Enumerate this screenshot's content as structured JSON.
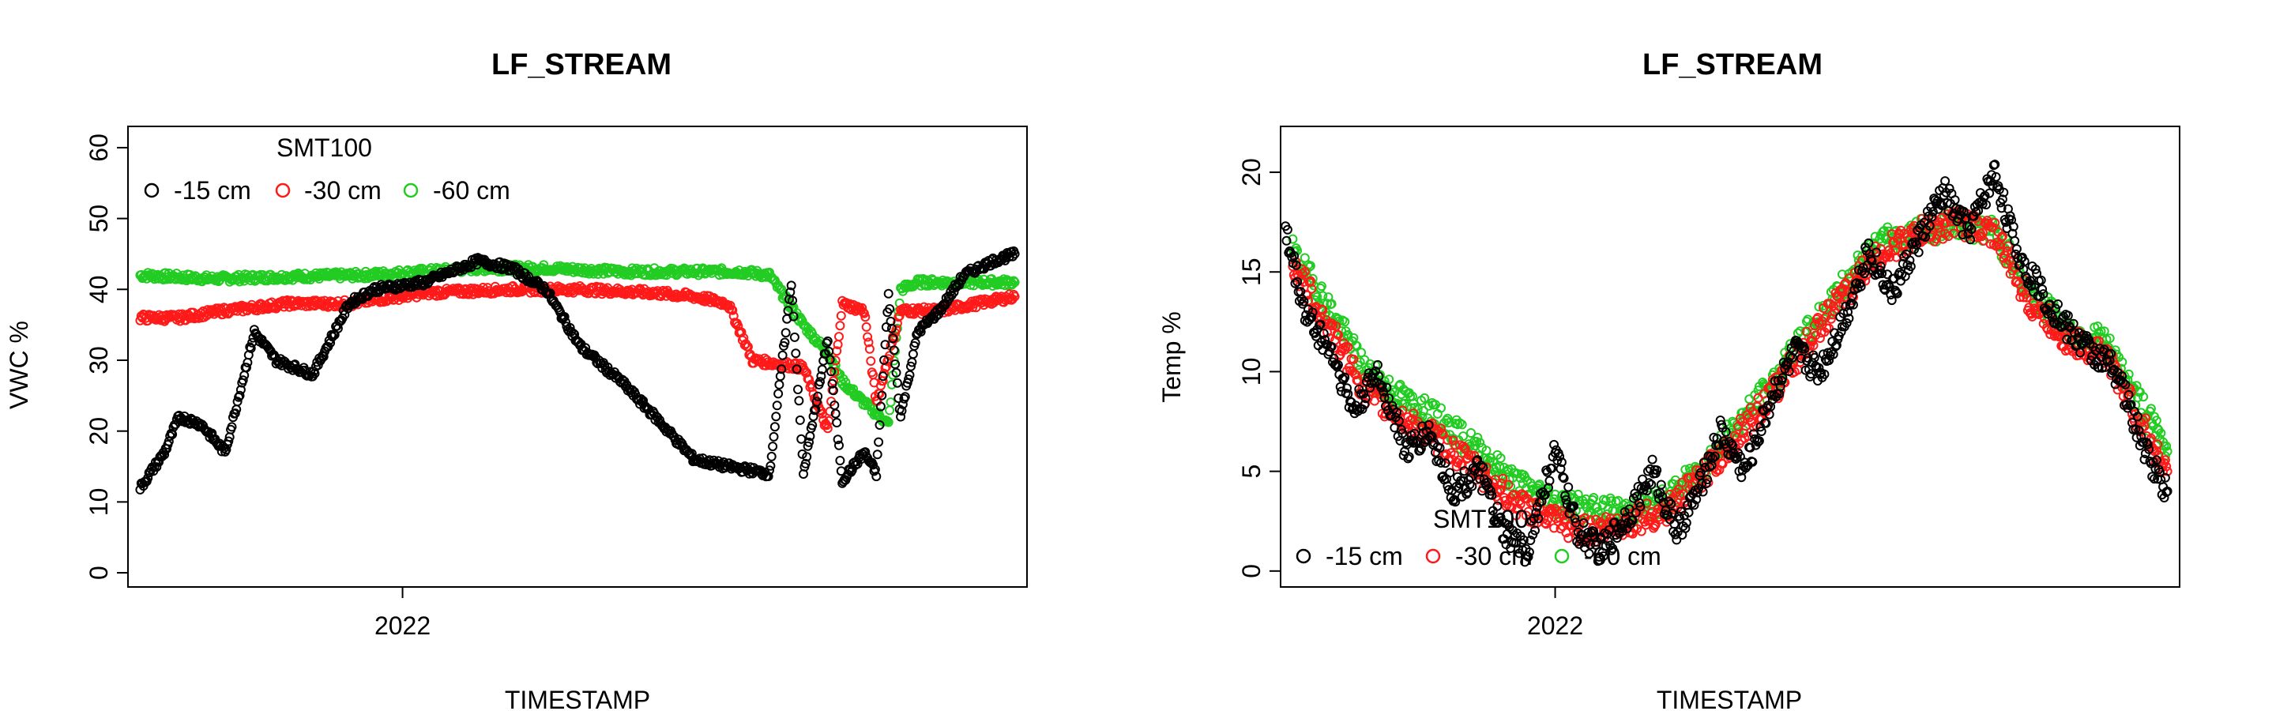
{
  "chart_data": [
    {
      "type": "scatter",
      "title": "LF_STREAM",
      "xlabel": "TIMESTAMP",
      "ylabel": "VWC %",
      "ylim": [
        -2,
        63
      ],
      "y_ticks": [
        0,
        10,
        20,
        30,
        40,
        50,
        60
      ],
      "x_tick_labels": [
        "2022"
      ],
      "x_domain": [
        "2021-09-10",
        "2022-09-15"
      ],
      "x_tick_dates": [
        "2022-01-01"
      ],
      "legend": {
        "title": "SMT100",
        "position": "top-left",
        "entries": [
          "-15 cm",
          "-30 cm",
          "-60 cm"
        ]
      },
      "series": [
        {
          "name": "-60 cm",
          "color": "#22cc22",
          "x": [
            "2021-09-15",
            "2021-10-15",
            "2021-11-15",
            "2021-12-15",
            "2022-01-10",
            "2022-02-01",
            "2022-03-01",
            "2022-04-01",
            "2022-05-01",
            "2022-05-20",
            "2022-06-01",
            "2022-06-15",
            "2022-06-25",
            "2022-07-01",
            "2022-07-10",
            "2022-07-20",
            "2022-07-25",
            "2022-08-01",
            "2022-08-15",
            "2022-09-10"
          ],
          "y": [
            42,
            41.5,
            41.8,
            42,
            42.5,
            43,
            43,
            42.5,
            42.5,
            42.5,
            42,
            35,
            31,
            27,
            24,
            21,
            40,
            41,
            41,
            41
          ]
        },
        {
          "name": "-30 cm",
          "color": "#ff1a1a",
          "x": [
            "2021-09-15",
            "2021-10-01",
            "2021-10-20",
            "2021-11-15",
            "2021-12-10",
            "2022-01-10",
            "2022-02-15",
            "2022-03-15",
            "2022-04-15",
            "2022-05-01",
            "2022-05-15",
            "2022-05-25",
            "2022-06-15",
            "2022-06-25",
            "2022-07-01",
            "2022-07-10",
            "2022-07-15",
            "2022-07-25",
            "2022-08-10",
            "2022-09-10"
          ],
          "y": [
            36,
            36,
            37,
            38,
            38,
            39.5,
            40,
            40,
            39.5,
            39,
            38,
            30,
            29,
            20,
            38,
            37,
            24,
            37,
            37,
            39
          ]
        },
        {
          "name": "-15 cm",
          "color": "#000000",
          "x": [
            "2021-09-15",
            "2021-09-25",
            "2021-10-01",
            "2021-10-10",
            "2021-10-20",
            "2021-11-01",
            "2021-11-10",
            "2021-11-25",
            "2021-12-10",
            "2021-12-20",
            "2022-01-10",
            "2022-02-01",
            "2022-02-15",
            "2022-03-01",
            "2022-03-15",
            "2022-04-01",
            "2022-04-15",
            "2022-05-01",
            "2022-05-15",
            "2022-06-01",
            "2022-06-10",
            "2022-06-15",
            "2022-06-25",
            "2022-07-01",
            "2022-07-10",
            "2022-07-15",
            "2022-07-20",
            "2022-07-25",
            "2022-08-01",
            "2022-08-10",
            "2022-08-20",
            "2022-09-01",
            "2022-09-10"
          ],
          "y": [
            12,
            17,
            22,
            21,
            17,
            34,
            30,
            28,
            38,
            40,
            41,
            44,
            43,
            40,
            32,
            27,
            22,
            16,
            15,
            14,
            41,
            14,
            33,
            13,
            17,
            14,
            39,
            22,
            34,
            37,
            42,
            44,
            45
          ]
        }
      ]
    },
    {
      "type": "scatter",
      "title": "LF_STREAM",
      "xlabel": "TIMESTAMP",
      "ylabel": "Temp %",
      "ylim": [
        -0.8,
        22.3
      ],
      "y_ticks": [
        0,
        5,
        10,
        15,
        20
      ],
      "x_tick_labels": [
        "2022"
      ],
      "x_domain": [
        "2021-09-10",
        "2022-09-15"
      ],
      "x_tick_dates": [
        "2022-01-01"
      ],
      "legend": {
        "title": "SMT100",
        "position": "bottom-left",
        "entries": [
          "-15 cm",
          "-30 cm",
          "-60 cm"
        ]
      },
      "series": [
        {
          "name": "-60 cm",
          "color": "#22cc22",
          "x": [
            "2021-09-15",
            "2021-10-01",
            "2021-10-15",
            "2021-11-01",
            "2021-11-15",
            "2021-12-01",
            "2021-12-15",
            "2022-01-01",
            "2022-01-15",
            "2022-02-01",
            "2022-02-15",
            "2022-03-01",
            "2022-03-15",
            "2022-04-01",
            "2022-04-15",
            "2022-05-01",
            "2022-05-15",
            "2022-06-01",
            "2022-06-15",
            "2022-07-01",
            "2022-07-15",
            "2022-08-01",
            "2022-08-15",
            "2022-09-01",
            "2022-09-10"
          ],
          "y": [
            16,
            13,
            10,
            8.5,
            7.5,
            6,
            4.5,
            3.5,
            3,
            3,
            3.5,
            5,
            7,
            9.5,
            12,
            14.5,
            16.5,
            17,
            17.5,
            17,
            14,
            12,
            11.5,
            8,
            6
          ]
        },
        {
          "name": "-30 cm",
          "color": "#ff1a1a",
          "x": [
            "2021-09-15",
            "2021-10-01",
            "2021-10-15",
            "2021-11-01",
            "2021-11-15",
            "2021-12-01",
            "2021-12-15",
            "2022-01-01",
            "2022-01-15",
            "2022-02-01",
            "2022-02-15",
            "2022-03-01",
            "2022-03-15",
            "2022-04-01",
            "2022-04-15",
            "2022-05-01",
            "2022-05-15",
            "2022-06-01",
            "2022-06-15",
            "2022-07-01",
            "2022-07-15",
            "2022-08-01",
            "2022-08-15",
            "2022-09-01",
            "2022-09-10"
          ],
          "y": [
            15.5,
            12,
            9,
            7.5,
            6.5,
            5,
            3.5,
            2.5,
            2,
            2.5,
            3,
            4.5,
            6.5,
            9,
            11.5,
            14,
            16,
            17,
            17.5,
            17,
            13.5,
            11.5,
            11,
            7,
            5
          ]
        },
        {
          "name": "-15 cm",
          "color": "#000000",
          "x": [
            "2021-09-12",
            "2021-09-20",
            "2021-10-01",
            "2021-10-10",
            "2021-10-20",
            "2021-11-01",
            "2021-11-10",
            "2021-11-20",
            "2021-12-01",
            "2021-12-10",
            "2021-12-20",
            "2022-01-01",
            "2022-01-10",
            "2022-01-20",
            "2022-02-01",
            "2022-02-10",
            "2022-02-20",
            "2022-03-01",
            "2022-03-10",
            "2022-03-20",
            "2022-04-01",
            "2022-04-10",
            "2022-04-20",
            "2022-05-01",
            "2022-05-10",
            "2022-05-20",
            "2022-06-01",
            "2022-06-10",
            "2022-06-20",
            "2022-07-01",
            "2022-07-10",
            "2022-07-20",
            "2022-08-01",
            "2022-08-10",
            "2022-08-20",
            "2022-09-01",
            "2022-09-10"
          ],
          "y": [
            17,
            13,
            11,
            8,
            10,
            6,
            7,
            4,
            5,
            2,
            1,
            6,
            2,
            1,
            3,
            5,
            2,
            4,
            7,
            5,
            9,
            11,
            10,
            13,
            16,
            14,
            17,
            19,
            17,
            20,
            16,
            14,
            12,
            11,
            10,
            6,
            4
          ]
        }
      ]
    }
  ]
}
